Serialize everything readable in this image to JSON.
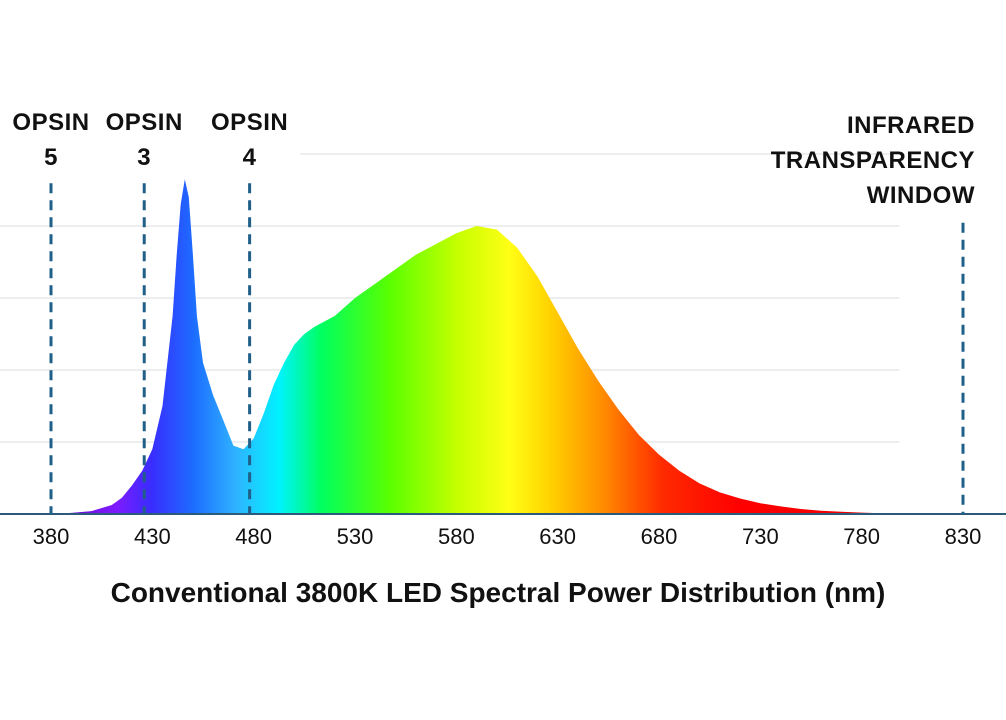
{
  "chart_data": {
    "type": "area",
    "xlabel": "Conventional 3800K LED Spectral Power Distribution (nm)",
    "ylabel": "",
    "title": "",
    "xlim": [
      380,
      830
    ],
    "ylim": [
      0,
      1.0
    ],
    "x_ticks": [
      380,
      430,
      480,
      530,
      580,
      630,
      680,
      730,
      780,
      830
    ],
    "grid": true,
    "y_gridlines": [
      0.2,
      0.4,
      0.6,
      0.8,
      1.0
    ],
    "gridline_x_range": [
      380,
      800
    ],
    "gridline_top_x_range": [
      505,
      800
    ],
    "series": [
      {
        "x": [
          380,
          390,
          400,
          410,
          415,
          420,
          425,
          430,
          435,
          440,
          442,
          444,
          446,
          448,
          450,
          452,
          455,
          460,
          465,
          470,
          475,
          480,
          485,
          490,
          495,
          500,
          505,
          510,
          520,
          530,
          540,
          550,
          560,
          570,
          580,
          590,
          600,
          610,
          620,
          630,
          640,
          650,
          660,
          670,
          680,
          690,
          700,
          710,
          720,
          730,
          740,
          750,
          760,
          770,
          780,
          790,
          800
        ],
        "y": [
          0.0,
          0.003,
          0.008,
          0.025,
          0.045,
          0.08,
          0.12,
          0.18,
          0.3,
          0.55,
          0.72,
          0.86,
          0.93,
          0.88,
          0.72,
          0.55,
          0.42,
          0.33,
          0.26,
          0.19,
          0.18,
          0.21,
          0.28,
          0.36,
          0.42,
          0.47,
          0.5,
          0.52,
          0.55,
          0.6,
          0.64,
          0.68,
          0.72,
          0.75,
          0.78,
          0.8,
          0.79,
          0.74,
          0.66,
          0.56,
          0.46,
          0.37,
          0.29,
          0.22,
          0.165,
          0.12,
          0.085,
          0.06,
          0.043,
          0.03,
          0.021,
          0.014,
          0.009,
          0.006,
          0.004,
          0.002,
          0.001
        ]
      }
    ],
    "markers": [
      {
        "x": 380,
        "label_lines": [
          "OPSIN",
          "5"
        ],
        "top": 0.93
      },
      {
        "x": 426,
        "label_lines": [
          "OPSIN",
          "3"
        ],
        "top": 0.93
      },
      {
        "x": 478,
        "label_lines": [
          "OPSIN",
          "4"
        ],
        "top": 0.93
      },
      {
        "x": 830,
        "label_lines": [
          "INFRARED",
          "TRANSPARENCY",
          "WINDOW"
        ],
        "top": 0.82
      }
    ],
    "colors": {
      "marker": "#1f5f88",
      "axis": "#2c5a7a",
      "grid": "#d9dde2",
      "text": "#111111"
    }
  }
}
